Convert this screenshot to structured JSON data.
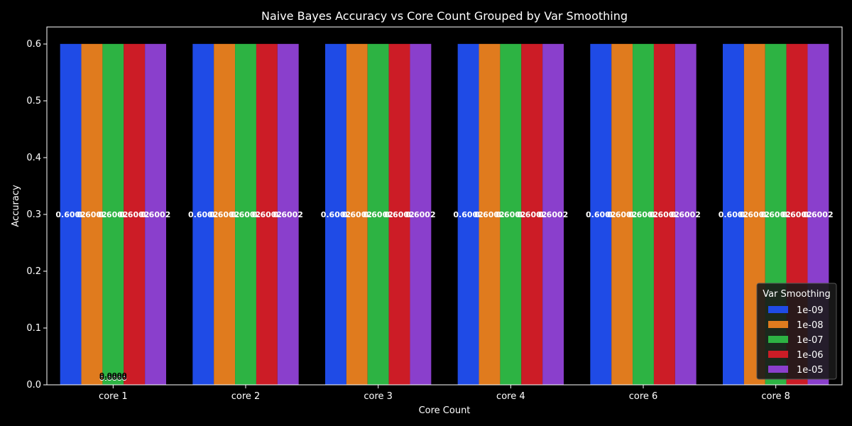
{
  "chart_data": {
    "type": "bar",
    "title": "Naive Bayes Accuracy vs Core Count Grouped by Var Smoothing",
    "xlabel": "Core Count",
    "ylabel": "Accuracy",
    "categories": [
      "core 1",
      "core 2",
      "core 3",
      "core 4",
      "core 6",
      "core 8"
    ],
    "ylim": [
      0,
      0.63
    ],
    "yticks": [
      0.0,
      0.1,
      0.2,
      0.3,
      0.4,
      0.5,
      0.6
    ],
    "grid": false,
    "legend": {
      "title": "Var Smoothing",
      "placement": "bottom-right"
    },
    "series": [
      {
        "name": "1e-09",
        "color": "#1f4be6",
        "values": [
          0.6002,
          0.6002,
          0.6002,
          0.6002,
          0.6002,
          0.6002
        ]
      },
      {
        "name": "1e-08",
        "color": "#e07b1e",
        "values": [
          0.6002,
          0.6002,
          0.6002,
          0.6002,
          0.6002,
          0.6002
        ]
      },
      {
        "name": "1e-07",
        "color": "#2db343",
        "values": [
          0.6002,
          0.6002,
          0.6002,
          0.6002,
          0.6002,
          0.6002
        ]
      },
      {
        "name": "1e-06",
        "color": "#cc1c26",
        "values": [
          0.6002,
          0.6002,
          0.6002,
          0.6002,
          0.6002,
          0.6002
        ]
      },
      {
        "name": "1e-05",
        "color": "#8a3fcc",
        "values": [
          0.6002,
          0.6002,
          0.6002,
          0.6002,
          0.6002,
          0.6002
        ]
      }
    ],
    "bar_label_format": "0.6002",
    "extra_labels": [
      {
        "category": "core 1",
        "text": "0.0000",
        "value": 0.0
      },
      {
        "category": "core 1",
        "text": "0.0000",
        "value": 0.0
      },
      {
        "category": "core 1",
        "text": "0.0000",
        "value": 0.0
      },
      {
        "category": "core 1",
        "text": "0.0000",
        "value": 0.0
      },
      {
        "category": "core 1",
        "text": "0.0000",
        "value": 0.0
      }
    ],
    "colors": {
      "background": "#000000",
      "axis": "#ffffff",
      "text": "#ffffff",
      "legend_bg": "#1a1a1a"
    }
  }
}
